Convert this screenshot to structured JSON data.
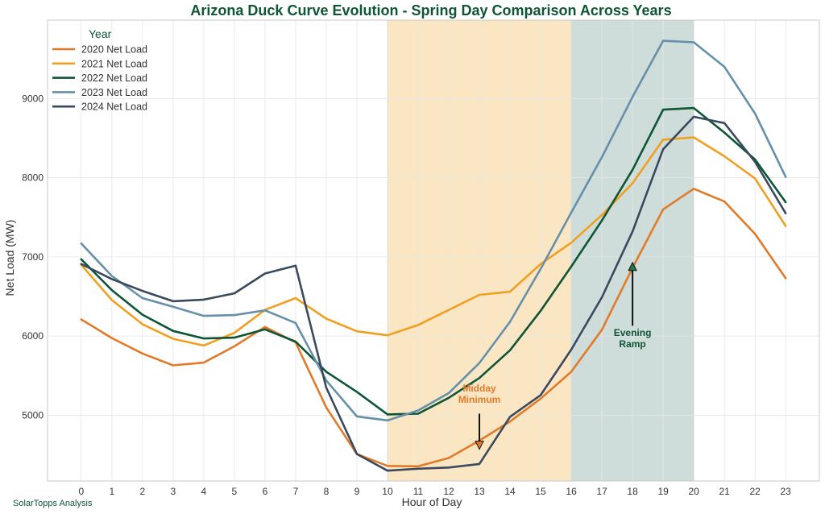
{
  "chart_data": {
    "type": "line",
    "title": "Arizona Duck Curve Evolution - Spring Day Comparison Across Years",
    "xlabel": "Hour of Day",
    "ylabel": "Net Load (MW)",
    "x": [
      0,
      1,
      2,
      3,
      4,
      5,
      6,
      7,
      8,
      9,
      10,
      11,
      12,
      13,
      14,
      15,
      16,
      17,
      18,
      19,
      20,
      21,
      22,
      23
    ],
    "xlim": [
      -1.1,
      24.1
    ],
    "ylim": [
      4170,
      9990
    ],
    "yticks": [
      5000,
      6000,
      7000,
      8000,
      9000
    ],
    "grid": true,
    "legend": {
      "title": "Year",
      "placement": "top-left"
    },
    "series": [
      {
        "name": "2020 Net Load",
        "color": "#e07b2a",
        "values": [
          6210,
          5975,
          5780,
          5630,
          5665,
          5870,
          6115,
          5920,
          5100,
          4510,
          4360,
          4355,
          4460,
          4680,
          4920,
          5210,
          5550,
          6080,
          6860,
          7600,
          7860,
          7700,
          7290,
          6730
        ]
      },
      {
        "name": "2021 Net Load",
        "color": "#f0a020",
        "values": [
          6900,
          6455,
          6150,
          5965,
          5880,
          6040,
          6330,
          6480,
          6220,
          6060,
          6010,
          6140,
          6330,
          6520,
          6560,
          6910,
          7180,
          7530,
          7930,
          8480,
          8510,
          8270,
          7990,
          7390
        ]
      },
      {
        "name": "2022 Net Load",
        "color": "#0e5535",
        "values": [
          6970,
          6580,
          6270,
          6065,
          5970,
          5980,
          6085,
          5930,
          5550,
          5295,
          5010,
          5020,
          5220,
          5470,
          5820,
          6320,
          6880,
          7460,
          8100,
          8860,
          8880,
          8570,
          8230,
          7690
        ]
      },
      {
        "name": "2023 Net Load",
        "color": "#6690aa",
        "values": [
          7170,
          6760,
          6480,
          6370,
          6255,
          6265,
          6325,
          6165,
          5440,
          4985,
          4935,
          5060,
          5280,
          5660,
          6180,
          6850,
          7560,
          8260,
          9020,
          9730,
          9710,
          9400,
          8810,
          8010
        ]
      },
      {
        "name": "2024 Net Load",
        "color": "#3a4a5e",
        "values": [
          6910,
          6720,
          6570,
          6440,
          6460,
          6540,
          6790,
          6890,
          5350,
          4510,
          4300,
          4325,
          4340,
          4385,
          4980,
          5255,
          5830,
          6490,
          7320,
          8360,
          8770,
          8690,
          8200,
          7550
        ]
      }
    ],
    "shaded_regions": [
      {
        "x_start": 10,
        "x_end": 16,
        "color": "#fbe6c4"
      },
      {
        "x_start": 16,
        "x_end": 20,
        "color": "#cfddda"
      }
    ],
    "annotations": [
      {
        "text_lines": [
          "Midday",
          "Minimum"
        ],
        "text_x": 13,
        "text_y": 5300,
        "arrow_from_y": 5020,
        "arrow_to_x": 13,
        "arrow_to_y": 4570,
        "color": "#e07b2a",
        "arrow_fill": "#e07b2a"
      },
      {
        "text_lines": [
          "Evening",
          "Ramp"
        ],
        "text_x": 18,
        "text_y": 6000,
        "arrow_from_y": 6130,
        "arrow_to_x": 18,
        "arrow_to_y": 6930,
        "color": "#0e5535",
        "arrow_fill": "#1a7a4c"
      }
    ]
  },
  "footer": {
    "credit": "SolarTopps Analysis"
  },
  "colors": {
    "title": "#0e5535",
    "legend_title": "#0e5535",
    "credit": "#0e5535"
  }
}
